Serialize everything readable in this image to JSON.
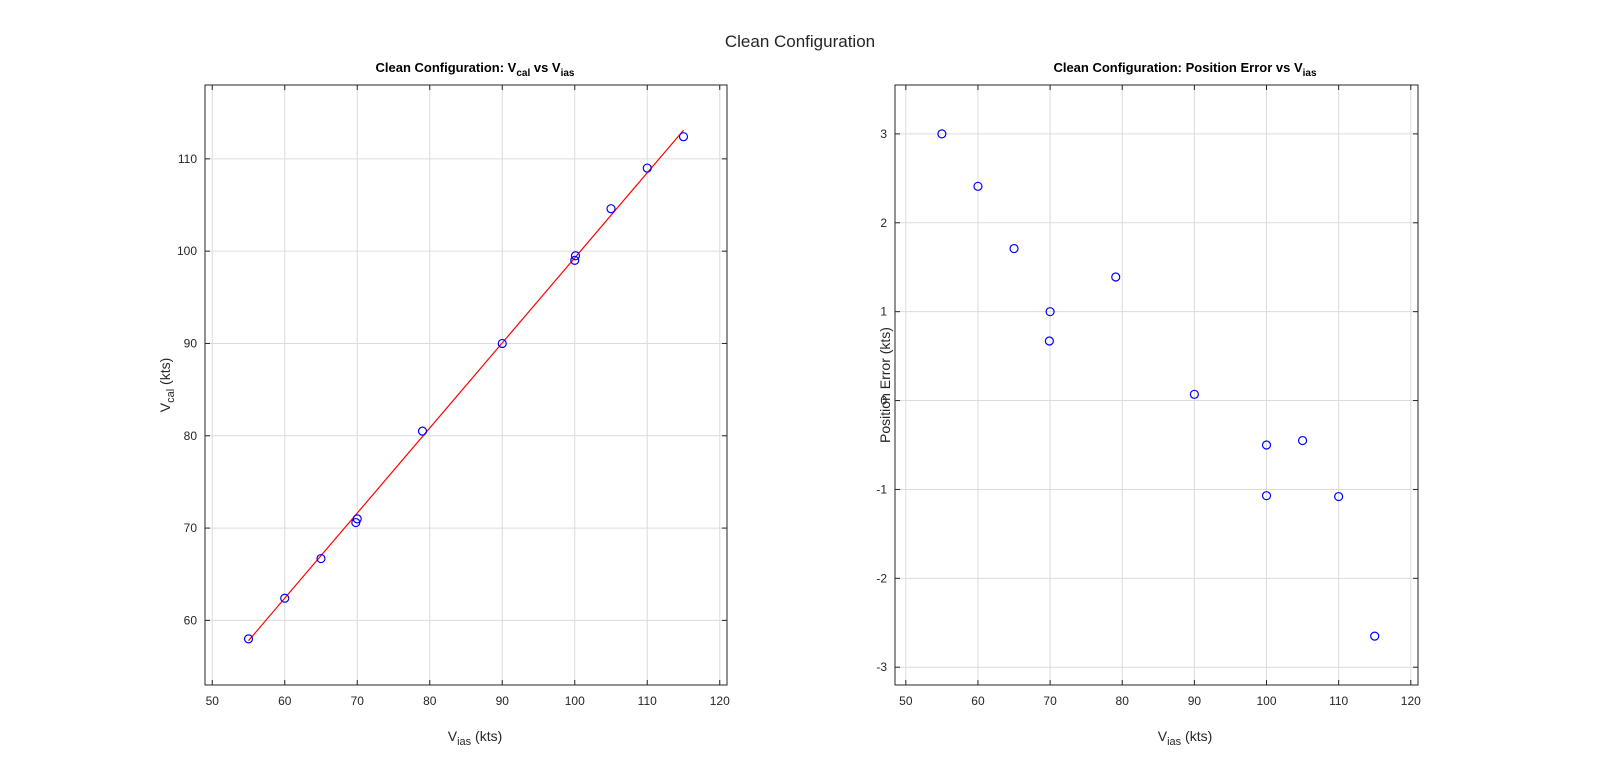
{
  "figure_title": "Clean Configuration",
  "chart_data": [
    {
      "type": "scatter",
      "title": {
        "main": "Clean Configuration: V",
        "sub1": "cal",
        "mid": " vs V",
        "sub2": "ias"
      },
      "xlabel": {
        "main": "V",
        "sub": "ias",
        "rest": " (kts)"
      },
      "ylabel": {
        "main": "V",
        "sub": "cal",
        "rest": " (kts)"
      },
      "xlim": [
        49,
        121
      ],
      "ylim": [
        53,
        118
      ],
      "xticks": [
        50,
        60,
        70,
        80,
        90,
        100,
        110,
        120
      ],
      "yticks": [
        60,
        70,
        80,
        90,
        100,
        110
      ],
      "grid": true,
      "series": [
        {
          "marker": "circle",
          "color": "#0000ff",
          "x": [
            55,
            60,
            65,
            69.8,
            70,
            79,
            90,
            100,
            100.1,
            105,
            110,
            115
          ],
          "y": [
            58,
            62.4,
            66.7,
            70.6,
            71,
            80.5,
            90,
            99,
            99.5,
            104.6,
            109,
            112.4
          ]
        },
        {
          "line": "fit",
          "color": "#ff0000",
          "x": [
            55,
            115
          ],
          "y": [
            57.8,
            113.1
          ]
        }
      ]
    },
    {
      "type": "scatter",
      "title": {
        "main": "Clean Configuration: Position Error vs V",
        "sub": "ias"
      },
      "xlabel": {
        "main": "V",
        "sub": "ias",
        "rest": " (kts)"
      },
      "ylabel": "Position Error (kts)",
      "xlim": [
        48.5,
        121
      ],
      "ylim": [
        -3.2,
        3.55
      ],
      "xticks": [
        50,
        60,
        70,
        80,
        90,
        100,
        110,
        120
      ],
      "yticks": [
        -3,
        -2,
        -1,
        0,
        1,
        2,
        3
      ],
      "grid": true,
      "series": [
        {
          "marker": "circle",
          "color": "#0000ff",
          "x": [
            55,
            60,
            65,
            70,
            69.9,
            79.1,
            90,
            100,
            100,
            105,
            110,
            115
          ],
          "y": [
            3.0,
            2.41,
            1.71,
            1.0,
            0.67,
            1.39,
            0.07,
            -0.5,
            -1.07,
            -0.45,
            -1.08,
            -2.65
          ]
        }
      ]
    }
  ]
}
